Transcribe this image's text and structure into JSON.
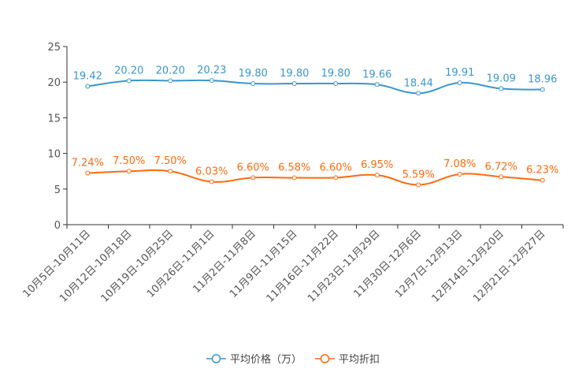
{
  "chart_data": {
    "type": "line",
    "categories": [
      "10月5日-10月11日",
      "10月12日-10月18日",
      "10月19日-10月25日",
      "10月26日-11月1日",
      "11月2日-11月8日",
      "11月9日-11月15日",
      "11月16日-11月22日",
      "11月23日-11月29日",
      "11月30日-12月6日",
      "12月7日-12月13日",
      "12月14日-12月20日",
      "12月21日-12月27日"
    ],
    "series": [
      {
        "name": "平均价格（万）",
        "color": "#3a96d0",
        "values": [
          19.42,
          20.2,
          20.2,
          20.23,
          19.8,
          19.8,
          19.8,
          19.66,
          18.44,
          19.91,
          19.09,
          18.96
        ],
        "labels": [
          "19.42",
          "20.20",
          "20.20",
          "20.23",
          "19.80",
          "19.80",
          "19.80",
          "19.66",
          "18.44",
          "19.91",
          "19.09",
          "18.96"
        ]
      },
      {
        "name": "平均折扣",
        "color": "#ff6a0d",
        "values": [
          7.24,
          7.5,
          7.5,
          6.03,
          6.6,
          6.58,
          6.6,
          6.95,
          5.59,
          7.08,
          6.72,
          6.23
        ],
        "labels": [
          "7.24%",
          "7.50%",
          "7.50%",
          "6.03%",
          "6.60%",
          "6.58%",
          "6.60%",
          "6.95%",
          "5.59%",
          "7.08%",
          "6.72%",
          "6.23%"
        ]
      }
    ],
    "yticks": [
      0,
      5,
      10,
      15,
      20,
      25
    ],
    "ylim": [
      0,
      25
    ],
    "grid": false,
    "legend": "bottom-center",
    "title": "",
    "xlabel": "",
    "ylabel": ""
  }
}
